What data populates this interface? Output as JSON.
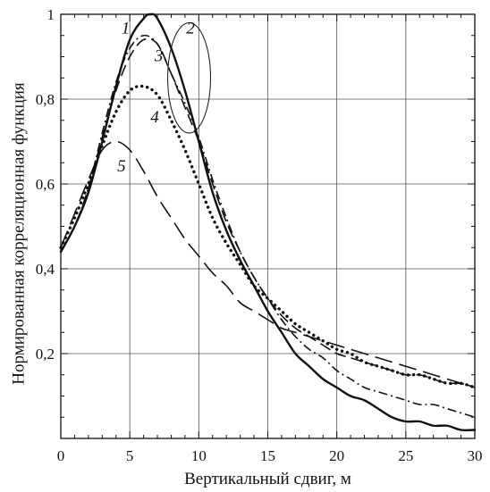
{
  "chart_data": {
    "type": "line",
    "xlabel": "Вертикальный сдвиг, м",
    "ylabel": "Нормированная корреляционная функция",
    "xlim": [
      0,
      30
    ],
    "ylim": [
      0,
      1
    ],
    "xticks": [
      0,
      5,
      10,
      15,
      20,
      25,
      30
    ],
    "yticks": [
      0.2,
      0.4,
      0.6,
      0.8,
      1
    ],
    "ytick_labels": [
      "0,2",
      "0,4",
      "0,6",
      "0,8",
      "1"
    ],
    "grid": true,
    "legend": "none",
    "series": [
      {
        "name": "1",
        "style": "solid",
        "x": [
          0,
          1,
          2,
          3,
          4,
          5,
          6,
          6.5,
          7,
          8,
          9,
          10,
          11,
          12,
          13,
          14,
          15,
          16,
          17,
          18,
          19,
          20,
          21,
          22,
          23,
          24,
          25,
          26,
          27,
          28,
          29,
          30
        ],
        "y": [
          0.44,
          0.5,
          0.58,
          0.7,
          0.83,
          0.94,
          0.99,
          1.0,
          0.99,
          0.92,
          0.82,
          0.7,
          0.58,
          0.49,
          0.42,
          0.36,
          0.3,
          0.25,
          0.2,
          0.17,
          0.14,
          0.12,
          0.1,
          0.09,
          0.07,
          0.05,
          0.04,
          0.04,
          0.03,
          0.03,
          0.02,
          0.02
        ]
      },
      {
        "name": "2",
        "style": "dash",
        "x": [
          0,
          1,
          2,
          3,
          4,
          5,
          6,
          7,
          8,
          9,
          10,
          11,
          12,
          13,
          14,
          15,
          16,
          17,
          18,
          19,
          20,
          21,
          22,
          23,
          24,
          25,
          26,
          27,
          28,
          29,
          30
        ],
        "y": [
          0.44,
          0.5,
          0.59,
          0.71,
          0.82,
          0.9,
          0.94,
          0.93,
          0.86,
          0.78,
          0.7,
          0.6,
          0.51,
          0.44,
          0.38,
          0.33,
          0.29,
          0.26,
          0.24,
          0.22,
          0.2,
          0.19,
          0.18,
          0.17,
          0.16,
          0.15,
          0.15,
          0.14,
          0.13,
          0.13,
          0.12
        ]
      },
      {
        "name": "3",
        "style": "dashdot",
        "x": [
          0,
          1,
          2,
          3,
          4,
          5,
          6,
          7,
          8,
          9,
          10,
          11,
          12,
          13,
          14,
          15,
          16,
          17,
          18,
          19,
          20,
          21,
          22,
          23,
          24,
          25,
          26,
          27,
          28,
          29,
          30
        ],
        "y": [
          0.44,
          0.5,
          0.59,
          0.72,
          0.84,
          0.92,
          0.95,
          0.93,
          0.86,
          0.79,
          0.71,
          0.61,
          0.52,
          0.44,
          0.38,
          0.33,
          0.28,
          0.24,
          0.21,
          0.19,
          0.16,
          0.14,
          0.12,
          0.11,
          0.1,
          0.09,
          0.08,
          0.08,
          0.07,
          0.06,
          0.05
        ]
      },
      {
        "name": "4",
        "style": "dot",
        "x": [
          0,
          1,
          2,
          3,
          4,
          5,
          6,
          7,
          8,
          9,
          10,
          11,
          12,
          13,
          14,
          15,
          16,
          17,
          18,
          19,
          20,
          21,
          22,
          23,
          24,
          25,
          26,
          27,
          28,
          29,
          30
        ],
        "y": [
          0.45,
          0.52,
          0.6,
          0.69,
          0.77,
          0.82,
          0.83,
          0.81,
          0.75,
          0.68,
          0.6,
          0.52,
          0.46,
          0.41,
          0.36,
          0.33,
          0.3,
          0.27,
          0.25,
          0.23,
          0.21,
          0.2,
          0.18,
          0.17,
          0.16,
          0.15,
          0.15,
          0.14,
          0.13,
          0.13,
          0.12
        ]
      },
      {
        "name": "5",
        "style": "longdash",
        "x": [
          0,
          1,
          2,
          3,
          4,
          5,
          6,
          7,
          8,
          9,
          10,
          11,
          12,
          13,
          14,
          15,
          16,
          17,
          18,
          19,
          20,
          21,
          22,
          23,
          24,
          25,
          26,
          27,
          28,
          29,
          30
        ],
        "y": [
          0.45,
          0.53,
          0.61,
          0.68,
          0.7,
          0.68,
          0.63,
          0.57,
          0.52,
          0.47,
          0.43,
          0.39,
          0.36,
          0.32,
          0.3,
          0.28,
          0.26,
          0.25,
          0.24,
          0.23,
          0.22,
          0.21,
          0.2,
          0.19,
          0.18,
          0.17,
          0.16,
          0.15,
          0.14,
          0.13,
          0.12
        ]
      }
    ],
    "curve_labels": [
      {
        "text": "1",
        "x": 4.7,
        "y": 0.955
      },
      {
        "text": "2",
        "x": 9.4,
        "y": 0.955
      },
      {
        "text": "3",
        "x": 7.1,
        "y": 0.89
      },
      {
        "text": "4",
        "x": 6.8,
        "y": 0.745
      },
      {
        "text": "5",
        "x": 4.4,
        "y": 0.63
      }
    ],
    "annotations": [
      {
        "shape": "circle",
        "cx": 9.3,
        "cy": 0.85,
        "rx": 1.55,
        "ry": 0.13
      }
    ]
  }
}
